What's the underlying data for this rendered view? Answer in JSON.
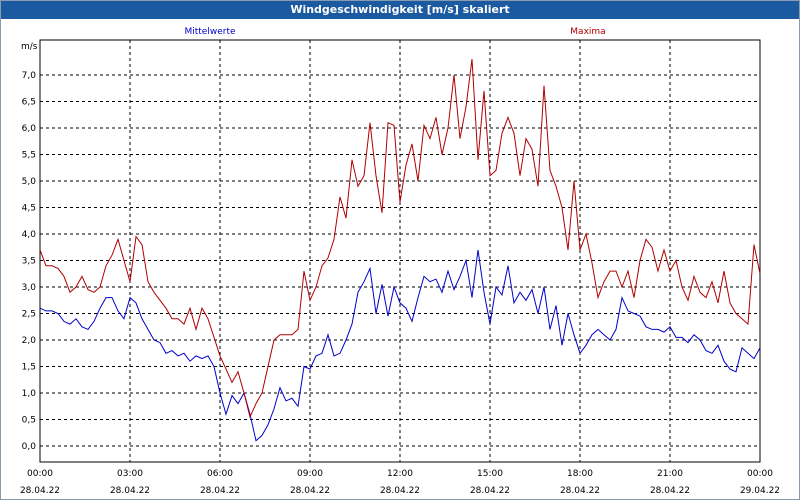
{
  "window": {
    "title": "Windgeschwindigkeit [m/s] skaliert"
  },
  "chart_data": {
    "type": "line",
    "title": "Windgeschwindigkeit [m/s] skaliert",
    "ylabel": "m/s",
    "ylim": [
      -0.2,
      7.5
    ],
    "y_ticks": [
      "0,0",
      "0,5",
      "1,0",
      "1,5",
      "2,0",
      "2,5",
      "3,0",
      "3,5",
      "4,0",
      "4,5",
      "5,0",
      "5,5",
      "6,0",
      "6,5",
      "7,0"
    ],
    "xlim": [
      0,
      24
    ],
    "x_ticks": [
      {
        "time": "00:00",
        "date": "28.04.22"
      },
      {
        "time": "03:00",
        "date": "28.04.22"
      },
      {
        "time": "06:00",
        "date": "28.04.22"
      },
      {
        "time": "09:00",
        "date": "28.04.22"
      },
      {
        "time": "12:00",
        "date": "28.04.22"
      },
      {
        "time": "15:00",
        "date": "28.04.22"
      },
      {
        "time": "18:00",
        "date": "28.04.22"
      },
      {
        "time": "21:00",
        "date": "28.04.22"
      },
      {
        "time": "00:00",
        "date": "29.04.22"
      }
    ],
    "grid": true,
    "colors": {
      "mittelwerte": "#0000cc",
      "maxima": "#b00000"
    },
    "series": [
      {
        "name": "Mittelwerte",
        "x": [
          0,
          0.2,
          0.4,
          0.6,
          0.8,
          1.0,
          1.2,
          1.4,
          1.6,
          1.8,
          2.0,
          2.2,
          2.4,
          2.6,
          2.8,
          3.0,
          3.2,
          3.4,
          3.6,
          3.8,
          4.0,
          4.2,
          4.4,
          4.6,
          4.8,
          5.0,
          5.2,
          5.4,
          5.6,
          5.8,
          6.0,
          6.2,
          6.4,
          6.6,
          6.8,
          7.0,
          7.2,
          7.4,
          7.6,
          7.8,
          8.0,
          8.2,
          8.4,
          8.6,
          8.8,
          9.0,
          9.2,
          9.4,
          9.6,
          9.8,
          10.0,
          10.2,
          10.4,
          10.6,
          10.8,
          11.0,
          11.2,
          11.4,
          11.6,
          11.8,
          12.0,
          12.2,
          12.4,
          12.6,
          12.8,
          13.0,
          13.2,
          13.4,
          13.6,
          13.8,
          14.0,
          14.2,
          14.4,
          14.6,
          14.8,
          15.0,
          15.2,
          15.4,
          15.6,
          15.8,
          16.0,
          16.2,
          16.4,
          16.6,
          16.8,
          17.0,
          17.2,
          17.4,
          17.6,
          17.8,
          18.0,
          18.2,
          18.4,
          18.6,
          18.8,
          19.0,
          19.2,
          19.4,
          19.6,
          19.8,
          20.0,
          20.2,
          20.4,
          20.6,
          20.8,
          21.0,
          21.2,
          21.4,
          21.6,
          21.8,
          22.0,
          22.2,
          22.4,
          22.6,
          22.8,
          23.0,
          23.2,
          23.4,
          23.6,
          23.8,
          24.0
        ],
        "values": [
          2.6,
          2.55,
          2.55,
          2.5,
          2.35,
          2.3,
          2.4,
          2.25,
          2.2,
          2.35,
          2.6,
          2.8,
          2.8,
          2.55,
          2.4,
          2.8,
          2.7,
          2.4,
          2.2,
          2.0,
          1.95,
          1.75,
          1.8,
          1.7,
          1.75,
          1.6,
          1.7,
          1.65,
          1.7,
          1.5,
          1.0,
          0.6,
          0.95,
          0.8,
          1.0,
          0.6,
          0.1,
          0.2,
          0.4,
          0.7,
          1.1,
          0.85,
          0.9,
          0.75,
          1.5,
          1.45,
          1.7,
          1.75,
          2.1,
          1.7,
          1.75,
          2.0,
          2.3,
          2.9,
          3.1,
          3.35,
          2.5,
          3.05,
          2.45,
          3.0,
          2.7,
          2.6,
          2.35,
          2.8,
          3.2,
          3.1,
          3.15,
          2.9,
          3.3,
          2.95,
          3.2,
          3.5,
          2.8,
          3.7,
          2.9,
          2.3,
          3.0,
          2.85,
          3.4,
          2.7,
          2.9,
          2.75,
          2.95,
          2.5,
          3.0,
          2.2,
          2.65,
          1.9,
          2.5,
          2.1,
          1.75,
          1.9,
          2.1,
          2.2,
          2.1,
          2.0,
          2.2,
          2.8,
          2.55,
          2.5,
          2.45,
          2.25,
          2.2,
          2.2,
          2.15,
          2.25,
          2.05,
          2.05,
          1.95,
          2.1,
          2.0,
          1.8,
          1.75,
          1.9,
          1.6,
          1.45,
          1.4,
          1.85,
          1.75,
          1.65,
          1.85
        ]
      },
      {
        "name": "Maxima",
        "x": [
          0,
          0.2,
          0.4,
          0.6,
          0.8,
          1.0,
          1.2,
          1.4,
          1.6,
          1.8,
          2.0,
          2.2,
          2.4,
          2.6,
          2.8,
          3.0,
          3.2,
          3.4,
          3.6,
          3.8,
          4.0,
          4.2,
          4.4,
          4.6,
          4.8,
          5.0,
          5.2,
          5.4,
          5.6,
          5.8,
          6.0,
          6.2,
          6.4,
          6.6,
          6.8,
          7.0,
          7.2,
          7.4,
          7.6,
          7.8,
          8.0,
          8.2,
          8.4,
          8.6,
          8.8,
          9.0,
          9.2,
          9.4,
          9.6,
          9.8,
          10.0,
          10.2,
          10.4,
          10.6,
          10.8,
          11.0,
          11.2,
          11.4,
          11.6,
          11.8,
          12.0,
          12.2,
          12.4,
          12.6,
          12.8,
          13.0,
          13.2,
          13.4,
          13.6,
          13.8,
          14.0,
          14.2,
          14.4,
          14.6,
          14.8,
          15.0,
          15.2,
          15.4,
          15.6,
          15.8,
          16.0,
          16.2,
          16.4,
          16.6,
          16.8,
          17.0,
          17.2,
          17.4,
          17.6,
          17.8,
          18.0,
          18.2,
          18.4,
          18.6,
          18.8,
          19.0,
          19.2,
          19.4,
          19.6,
          19.8,
          20.0,
          20.2,
          20.4,
          20.6,
          20.8,
          21.0,
          21.2,
          21.4,
          21.6,
          21.8,
          22.0,
          22.2,
          22.4,
          22.6,
          22.8,
          23.0,
          23.2,
          23.4,
          23.6,
          23.8,
          24.0
        ],
        "values": [
          3.7,
          3.4,
          3.4,
          3.35,
          3.2,
          2.9,
          3.0,
          3.2,
          2.95,
          2.9,
          3.0,
          3.4,
          3.6,
          3.9,
          3.5,
          3.1,
          3.95,
          3.8,
          3.1,
          2.9,
          2.75,
          2.6,
          2.4,
          2.4,
          2.3,
          2.6,
          2.2,
          2.6,
          2.4,
          2.05,
          1.7,
          1.45,
          1.2,
          1.4,
          1.0,
          0.55,
          0.8,
          1.0,
          1.5,
          2.0,
          2.1,
          2.1,
          2.1,
          2.2,
          3.3,
          2.75,
          3.0,
          3.4,
          3.55,
          3.9,
          4.7,
          4.3,
          5.4,
          4.9,
          5.1,
          6.1,
          5.1,
          4.4,
          6.1,
          6.05,
          4.6,
          5.3,
          5.7,
          5.0,
          6.05,
          5.8,
          6.2,
          5.5,
          6.0,
          7.0,
          5.8,
          6.4,
          7.3,
          5.4,
          6.7,
          5.1,
          5.2,
          5.9,
          6.2,
          5.9,
          5.1,
          5.8,
          5.6,
          4.9,
          6.8,
          5.2,
          4.9,
          4.5,
          3.7,
          5.0,
          3.7,
          4.0,
          3.45,
          2.8,
          3.1,
          3.3,
          3.3,
          3.0,
          3.3,
          2.8,
          3.5,
          3.9,
          3.75,
          3.3,
          3.7,
          3.3,
          3.5,
          3.0,
          2.75,
          3.2,
          2.9,
          2.8,
          3.1,
          2.7,
          3.3,
          2.7,
          2.5,
          2.4,
          2.3,
          3.8,
          3.25
        ]
      }
    ]
  }
}
